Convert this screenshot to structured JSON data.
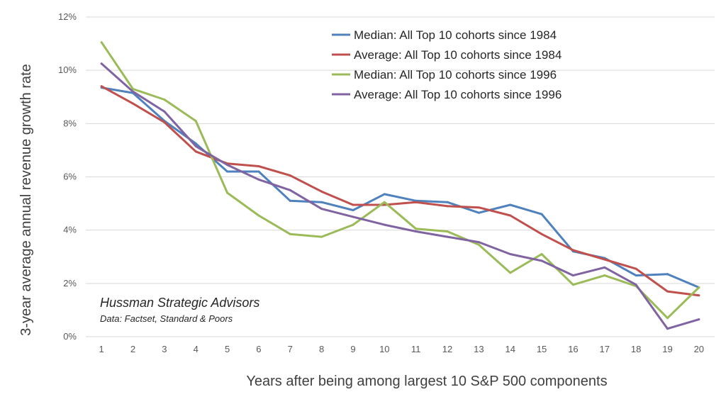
{
  "chart_data": {
    "type": "line",
    "xlabel": "Years after being among largest 10 S&P 500 components",
    "ylabel": "3-year average annual revenue growth rate",
    "x": [
      1,
      2,
      3,
      4,
      5,
      6,
      7,
      8,
      9,
      10,
      11,
      12,
      13,
      14,
      15,
      16,
      17,
      18,
      19,
      20
    ],
    "ylim": [
      0,
      12
    ],
    "yticks": [
      "0%",
      "2%",
      "4%",
      "6%",
      "8%",
      "10%",
      "12%"
    ],
    "grid": true,
    "legend_position": "top-right",
    "series": [
      {
        "name": "Median: All Top 10 cohorts since 1984",
        "color": "#4f81bd",
        "values": [
          9.35,
          9.15,
          8.1,
          7.25,
          6.2,
          6.2,
          5.1,
          5.05,
          4.75,
          5.35,
          5.1,
          5.05,
          4.65,
          4.95,
          4.6,
          3.2,
          2.95,
          2.3,
          2.35,
          1.85
        ]
      },
      {
        "name": "Average: All Top 10 cohorts since 1984",
        "color": "#c0504d",
        "values": [
          9.4,
          8.75,
          8.05,
          6.95,
          6.5,
          6.4,
          6.05,
          5.45,
          4.95,
          4.95,
          5.05,
          4.9,
          4.85,
          4.55,
          3.85,
          3.25,
          2.9,
          2.55,
          1.7,
          1.55
        ]
      },
      {
        "name": "Median: All Top 10 cohorts since 1996",
        "color": "#9bbb59",
        "values": [
          11.05,
          9.3,
          8.9,
          8.1,
          5.4,
          4.55,
          3.85,
          3.75,
          4.2,
          5.05,
          4.05,
          3.95,
          3.45,
          2.4,
          3.1,
          1.95,
          2.3,
          1.9,
          0.7,
          1.85
        ]
      },
      {
        "name": "Average: All Top 10 cohorts since 1996",
        "color": "#8064a2",
        "values": [
          10.25,
          9.2,
          8.45,
          7.15,
          6.45,
          5.9,
          5.5,
          4.8,
          4.5,
          4.2,
          3.95,
          3.75,
          3.55,
          3.1,
          2.85,
          2.3,
          2.6,
          1.95,
          0.3,
          0.65
        ]
      }
    ],
    "annotation": {
      "title": "Hussman Strategic Advisors",
      "subtitle": "Data: Factset,  Standard & Poors"
    }
  }
}
